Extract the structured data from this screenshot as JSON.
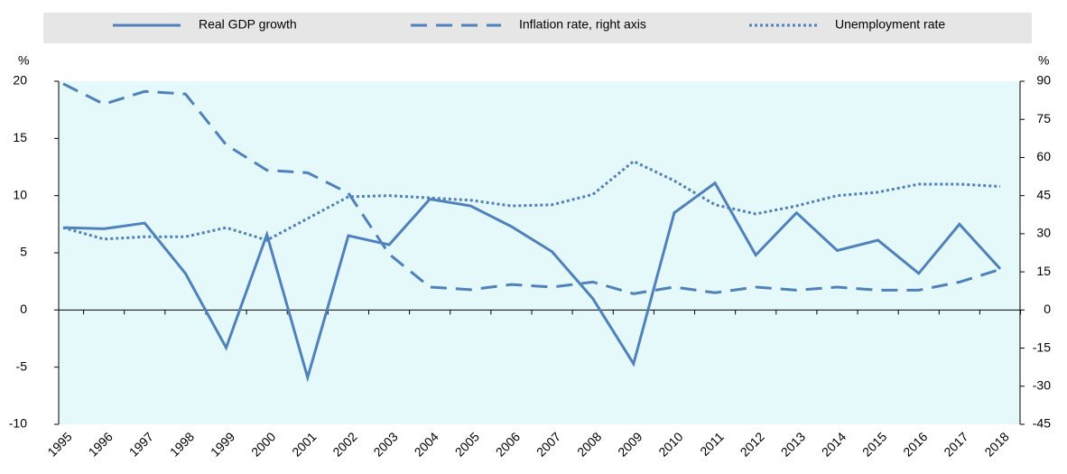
{
  "chart_data": {
    "type": "line",
    "y_unit": "%",
    "y2_unit": "%",
    "categories": [
      "1995",
      "1996",
      "1997",
      "1998",
      "1999",
      "2000",
      "2001",
      "2002",
      "2003",
      "2004",
      "2005",
      "2006",
      "2007",
      "2008",
      "2009",
      "2010",
      "2011",
      "2012",
      "2013",
      "2014",
      "2015",
      "2016",
      "2017",
      "2018"
    ],
    "series": [
      {
        "name": "Real GDP growth",
        "color": "#4f81bd",
        "style": "solid",
        "axis": "y",
        "values": [
          7.2,
          7.1,
          7.6,
          3.2,
          -3.3,
          6.6,
          -5.9,
          6.5,
          5.7,
          9.7,
          9.1,
          7.3,
          5.1,
          1.0,
          -4.7,
          8.5,
          11.1,
          4.8,
          8.5,
          5.2,
          6.1,
          3.2,
          7.5,
          3.6
        ]
      },
      {
        "name": "Inflation rate, right axis",
        "color": "#4f81bd",
        "style": "dashed",
        "axis": "y2",
        "values": [
          89,
          81,
          86,
          85,
          65,
          55,
          54,
          46,
          22,
          9,
          8,
          10,
          9,
          11,
          6.4,
          9,
          6.8,
          9,
          7.8,
          9,
          7.8,
          7.8,
          11,
          16
        ]
      },
      {
        "name": "Unemployment rate",
        "color": "#4f81bd",
        "style": "dotted",
        "axis": "y",
        "values": [
          7.2,
          6.2,
          6.4,
          6.4,
          7.2,
          6.1,
          8.0,
          9.9,
          10.0,
          9.8,
          9.6,
          9.1,
          9.2,
          10.1,
          13.0,
          11.3,
          9.2,
          8.4,
          9.1,
          10.0,
          10.3,
          11.0,
          11.0,
          10.8
        ]
      }
    ],
    "ylim": [
      -10,
      20
    ],
    "yticks": [
      -10,
      -5,
      0,
      5,
      10,
      15,
      20
    ],
    "y2lim": [
      -45,
      90
    ],
    "y2ticks": [
      -45,
      -30,
      -15,
      0,
      15,
      30,
      45,
      60,
      75,
      90
    ],
    "plot_background": "#e5f9fa"
  }
}
